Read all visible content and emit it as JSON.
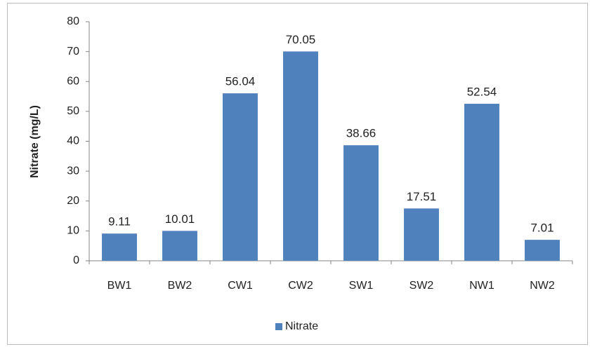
{
  "chart_data": {
    "type": "bar",
    "y_label": "Nitrate (mg/L)",
    "categories": [
      "BW1",
      "BW2",
      "CW1",
      "CW2",
      "SW1",
      "SW2",
      "NW1",
      "NW2"
    ],
    "series": [
      {
        "name": "Nitrate",
        "color": "#4f81bd",
        "values": [
          9.11,
          10.01,
          56.04,
          70.05,
          38.66,
          17.51,
          52.54,
          7.01
        ]
      }
    ],
    "ylim": [
      0,
      80
    ],
    "yticks": [
      0,
      10,
      20,
      30,
      40,
      50,
      60,
      70,
      80
    ],
    "grid": false,
    "legend": "bottom",
    "data_labels": true
  }
}
